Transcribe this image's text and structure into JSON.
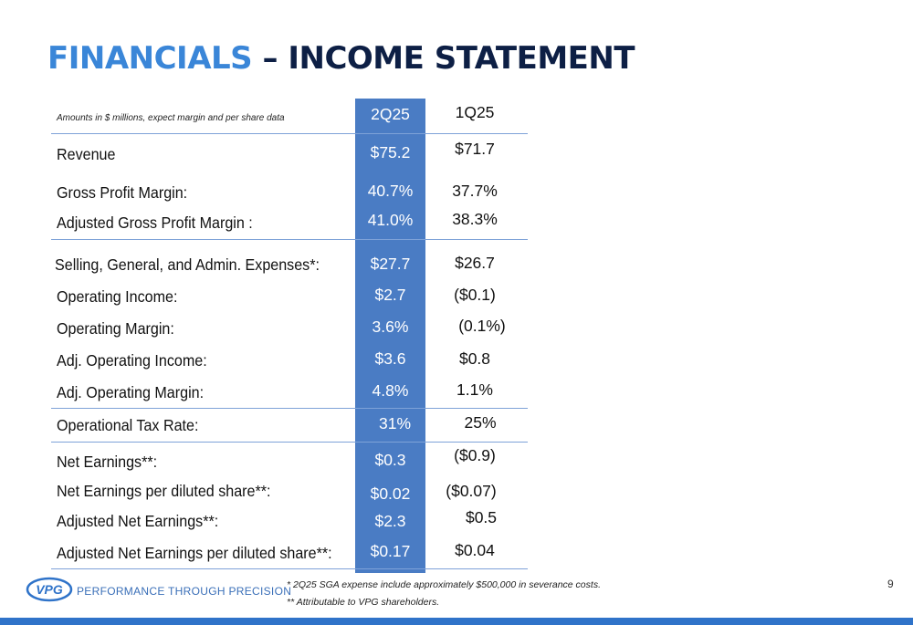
{
  "title": {
    "part1": "FINANCIALS",
    "part2": " – INCOME STATEMENT"
  },
  "note": "Amounts in $ millions, expect margin and per share data",
  "columns": {
    "current": "2Q25",
    "prior": "1Q25"
  },
  "rows": [
    {
      "label": "Revenue",
      "current": "$75.2",
      "prior": "$71.7"
    },
    {
      "label": "Gross Profit Margin:",
      "current": "40.7%",
      "prior": "37.7%"
    },
    {
      "label": "Adjusted Gross Profit Margin :",
      "current": "41.0%",
      "prior": "38.3%"
    },
    {
      "label": "Selling, General, and Admin. Expenses*:",
      "current": "$27.7",
      "prior": "$26.7"
    },
    {
      "label": "Operating Income:",
      "current": "$2.7",
      "prior": "($0.1)"
    },
    {
      "label": "Operating Margin:",
      "current": "3.6%",
      "prior": "(0.1%)"
    },
    {
      "label": "Adj. Operating Income:",
      "current": "$3.6",
      "prior": "$0.8"
    },
    {
      "label": "Adj. Operating Margin:",
      "current": "4.8%",
      "prior": "1.1%"
    },
    {
      "label": "Operational Tax Rate:",
      "current": "31%",
      "prior": "25%"
    },
    {
      "label": "Net Earnings**:",
      "current": "$0.3",
      "prior": "($0.9)"
    },
    {
      "label": "Net Earnings per diluted share**:",
      "current": "$0.02",
      "prior": "($0.07)"
    },
    {
      "label": "Adjusted Net Earnings**:",
      "current": "$2.3",
      "prior": "$0.5"
    },
    {
      "label": "Adjusted Net Earnings per diluted share**:",
      "current": "$0.17",
      "prior": "$0.04"
    }
  ],
  "footnotes": [
    "* 2Q25 SGA expense include approximately $500,000 in severance costs.",
    "** Attributable to VPG shareholders."
  ],
  "logo": {
    "text": "VPG",
    "tagline": "PERFORMANCE THROUGH PRECISION"
  },
  "page_number": "9",
  "colors": {
    "accent_blue": "#3a86d8",
    "navy": "#0d1f45",
    "column_fill": "#4a7cc4",
    "bar": "#2f73c9"
  }
}
